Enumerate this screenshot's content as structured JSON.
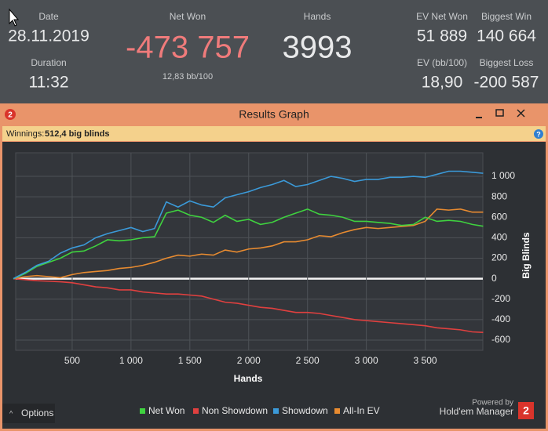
{
  "header": {
    "stats": [
      {
        "label": "Date",
        "value": "28.11.2019"
      },
      {
        "label": "Duration",
        "value": "11:32"
      },
      {
        "label": "Net Won",
        "value": "-473 757",
        "sub": "12,83 bb/100"
      },
      {
        "label": "Hands",
        "value": "3993"
      },
      {
        "label": "EV Net Won",
        "value": "51 889"
      },
      {
        "label": "Biggest Win",
        "value": "140 664"
      },
      {
        "label": "EV (bb/100)",
        "value": "18,90"
      },
      {
        "label": "Biggest Loss",
        "value": "-200 587"
      }
    ]
  },
  "window": {
    "title": "Results Graph",
    "logo": "2",
    "info_label": "Winnings:",
    "info_value": "512,4 big blinds",
    "help": "?",
    "options": "Options",
    "powered_by": "Powered by",
    "brand": "Hold'em Manager"
  },
  "chart_data": {
    "type": "line",
    "x_label": "Hands",
    "y_label": "Big Blinds",
    "x": [
      0,
      100,
      200,
      300,
      400,
      500,
      600,
      700,
      800,
      900,
      1000,
      1100,
      1200,
      1300,
      1400,
      1500,
      1600,
      1700,
      1800,
      1900,
      2000,
      2100,
      2200,
      2300,
      2400,
      2500,
      2600,
      2700,
      2800,
      2900,
      3000,
      3100,
      3200,
      3300,
      3400,
      3500,
      3600,
      3700,
      3800,
      3900,
      3993
    ],
    "series": [
      {
        "name": "Net Won",
        "color": "#3fd23f",
        "values": [
          0,
          50,
          120,
          160,
          200,
          260,
          270,
          320,
          380,
          370,
          380,
          400,
          410,
          640,
          670,
          620,
          600,
          550,
          620,
          560,
          580,
          530,
          550,
          600,
          640,
          680,
          630,
          620,
          600,
          560,
          560,
          550,
          540,
          520,
          530,
          600,
          560,
          570,
          560,
          530,
          512.4
        ]
      },
      {
        "name": "Non Showdown",
        "color": "#e0403f",
        "values": [
          0,
          -10,
          -20,
          -25,
          -30,
          -40,
          -60,
          -80,
          -90,
          -110,
          -110,
          -130,
          -140,
          -150,
          -150,
          -160,
          -170,
          -200,
          -230,
          -240,
          -260,
          -280,
          -290,
          -310,
          -330,
          -330,
          -340,
          -360,
          -380,
          -400,
          -410,
          -420,
          -430,
          -440,
          -450,
          -460,
          -480,
          -490,
          -500,
          -520,
          -525
        ]
      },
      {
        "name": "Showdown",
        "color": "#3b9ad9",
        "values": [
          0,
          60,
          130,
          170,
          250,
          300,
          330,
          400,
          440,
          470,
          500,
          460,
          490,
          750,
          700,
          760,
          720,
          700,
          790,
          820,
          850,
          890,
          920,
          960,
          900,
          920,
          960,
          1000,
          980,
          950,
          970,
          970,
          990,
          990,
          1000,
          990,
          1020,
          1050,
          1050,
          1040,
          1030
        ]
      },
      {
        "name": "All-In EV",
        "color": "#e88b30",
        "values": [
          0,
          20,
          30,
          20,
          10,
          40,
          60,
          70,
          80,
          100,
          110,
          130,
          160,
          200,
          230,
          220,
          240,
          230,
          280,
          260,
          290,
          300,
          320,
          360,
          360,
          380,
          420,
          410,
          450,
          480,
          500,
          490,
          500,
          510,
          520,
          560,
          680,
          670,
          680,
          650,
          650
        ]
      }
    ],
    "xlim": [
      20,
      3990
    ],
    "ylim": [
      -700,
      1230
    ],
    "xticks": [
      500,
      {
        "value": 1000,
        "label": "1 000"
      },
      {
        "value": 1500,
        "label": "1 500"
      },
      {
        "value": 2000,
        "label": "2 000"
      },
      {
        "value": 2500,
        "label": "2 500"
      },
      {
        "value": 3000,
        "label": "3 000"
      },
      {
        "value": 3500,
        "label": "3 500"
      }
    ],
    "yticks": [
      -600,
      -400,
      -200,
      0,
      200,
      400,
      600,
      800,
      {
        "value": 1000,
        "label": "1 000"
      }
    ],
    "grid": true
  }
}
